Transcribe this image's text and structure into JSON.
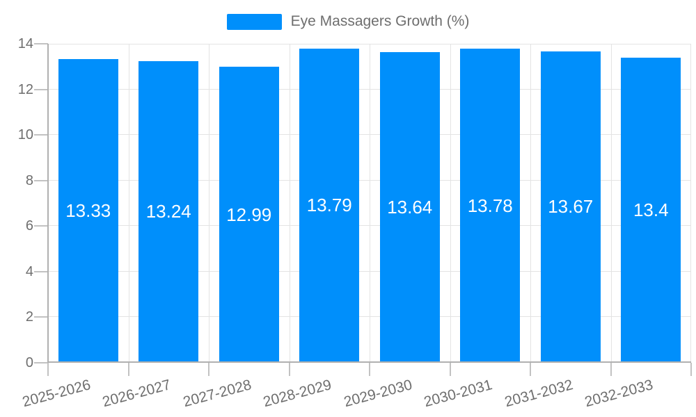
{
  "chart_data": {
    "type": "bar",
    "title": "Eye Massagers Growth (%)",
    "categories": [
      "2025-2026",
      "2026-2027",
      "2027-2028",
      "2028-2029",
      "2029-2030",
      "2030-2031",
      "2031-2032",
      "2032-2033"
    ],
    "values": [
      13.33,
      13.24,
      12.99,
      13.79,
      13.64,
      13.78,
      13.67,
      13.4
    ],
    "data_labels": [
      "13.33",
      "13.24",
      "12.99",
      "13.79",
      "13.64",
      "13.78",
      "13.67",
      "13.4"
    ],
    "xlabel": "",
    "ylabel": "",
    "ylim": [
      0,
      14
    ],
    "yticks": [
      0,
      2,
      4,
      6,
      8,
      10,
      12,
      14
    ],
    "grid": true,
    "legend": {
      "position": "top",
      "label": "Eye Massagers Growth (%)"
    },
    "colors": {
      "bar": "#008FFB",
      "grid_line": "#e3e3e3",
      "axis_line": "#b0b0b0",
      "tick": "#c2c2c2",
      "axis_label_text": "#6e6e6e",
      "data_label_text": "#ffffff",
      "background": "#ffffff"
    }
  }
}
